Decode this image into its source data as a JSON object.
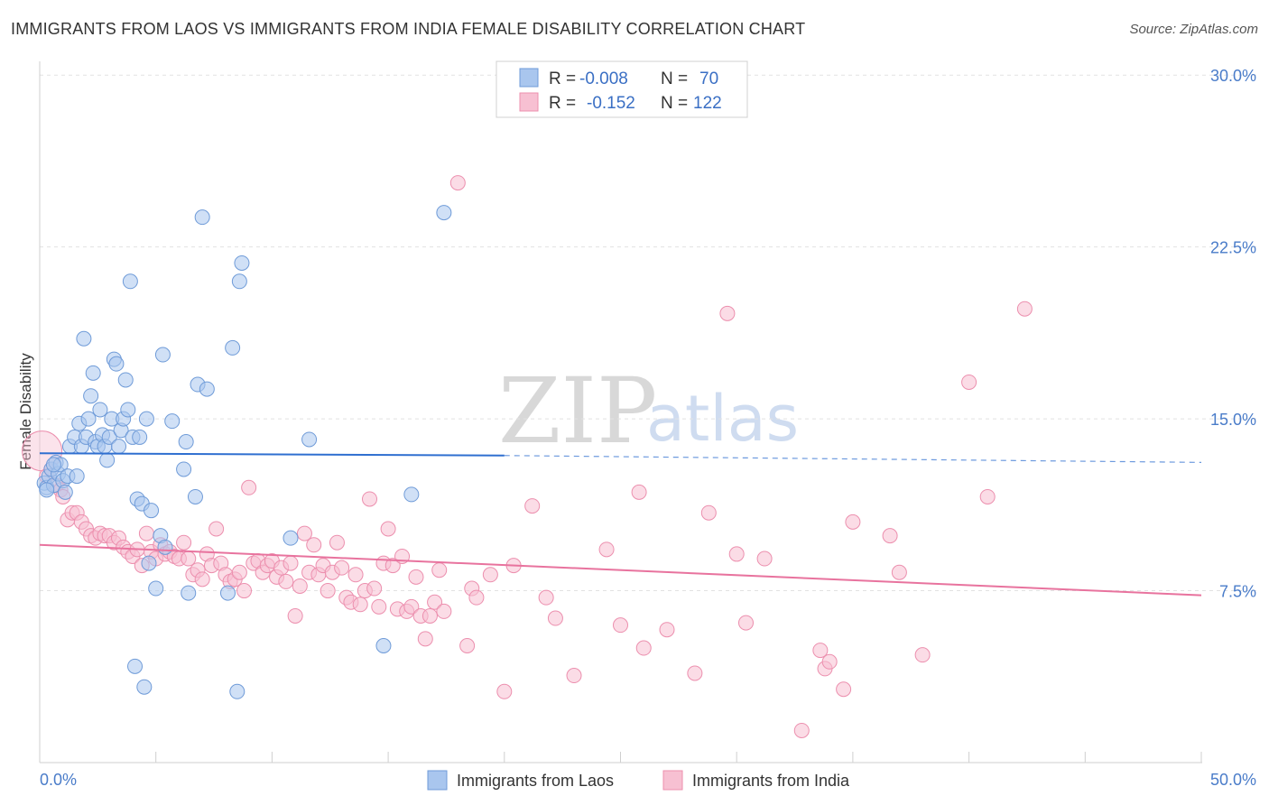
{
  "chart_data": {
    "type": "scatter",
    "title": "IMMIGRANTS FROM LAOS VS IMMIGRANTS FROM INDIA FEMALE DISABILITY CORRELATION CHART",
    "source": "Source: ZipAtlas.com",
    "watermark": {
      "part1": "ZIP",
      "part2": "atlas"
    },
    "xlabel": "",
    "ylabel": "Female Disability",
    "xlim": [
      0,
      50
    ],
    "ylim": [
      0,
      30.6
    ],
    "x_tick_labels": {
      "left": "0.0%",
      "right": "50.0%"
    },
    "y_ticks": [
      {
        "value": 7.5,
        "label": "7.5%"
      },
      {
        "value": 15.0,
        "label": "15.0%"
      },
      {
        "value": 22.5,
        "label": "22.5%"
      },
      {
        "value": 30.0,
        "label": "30.0%"
      }
    ],
    "legend_stats": [
      {
        "r_label": "R =",
        "r_value": "-0.008",
        "n_label": "N =",
        "n_value": "70"
      },
      {
        "r_label": "R =",
        "r_value": "-0.152",
        "n_label": "N =",
        "n_value": "122"
      }
    ],
    "series": [
      {
        "name": "Immigrants from Laos",
        "color": "#a9c6ee",
        "stroke": "#6f9bd8",
        "line_color": "#2f6fd0",
        "trend": {
          "x_start": 0,
          "y_start": 13.5,
          "x_solid_end": 20,
          "y_solid_end": 13.4,
          "x_end": 50,
          "y_end": 13.1
        },
        "points": [
          [
            0.2,
            12.2
          ],
          [
            0.3,
            12.0
          ],
          [
            0.4,
            12.5
          ],
          [
            0.5,
            12.8
          ],
          [
            0.6,
            12.1
          ],
          [
            0.7,
            13.1
          ],
          [
            0.8,
            12.6
          ],
          [
            0.9,
            13.0
          ],
          [
            1.0,
            12.3
          ],
          [
            1.1,
            11.8
          ],
          [
            1.2,
            12.5
          ],
          [
            1.3,
            13.8
          ],
          [
            1.5,
            14.2
          ],
          [
            1.6,
            12.5
          ],
          [
            1.7,
            14.8
          ],
          [
            1.8,
            13.8
          ],
          [
            1.9,
            18.5
          ],
          [
            2.0,
            14.2
          ],
          [
            2.1,
            15.0
          ],
          [
            2.2,
            16.0
          ],
          [
            2.3,
            17.0
          ],
          [
            2.4,
            14.0
          ],
          [
            2.5,
            13.8
          ],
          [
            2.6,
            15.4
          ],
          [
            2.7,
            14.3
          ],
          [
            2.8,
            13.8
          ],
          [
            2.9,
            13.2
          ],
          [
            3.0,
            14.2
          ],
          [
            3.1,
            15.0
          ],
          [
            3.2,
            17.6
          ],
          [
            3.3,
            17.4
          ],
          [
            3.4,
            13.8
          ],
          [
            3.5,
            14.5
          ],
          [
            3.6,
            15.0
          ],
          [
            3.7,
            16.7
          ],
          [
            3.8,
            15.4
          ],
          [
            3.9,
            21.0
          ],
          [
            4.0,
            14.2
          ],
          [
            4.1,
            4.2
          ],
          [
            4.2,
            11.5
          ],
          [
            4.3,
            14.2
          ],
          [
            4.4,
            11.3
          ],
          [
            4.5,
            3.3
          ],
          [
            4.6,
            15.0
          ],
          [
            4.7,
            8.7
          ],
          [
            4.8,
            11.0
          ],
          [
            5.0,
            7.6
          ],
          [
            5.2,
            9.9
          ],
          [
            5.3,
            17.8
          ],
          [
            5.4,
            9.4
          ],
          [
            5.7,
            14.9
          ],
          [
            6.2,
            12.8
          ],
          [
            6.3,
            14.0
          ],
          [
            6.4,
            7.4
          ],
          [
            6.7,
            11.6
          ],
          [
            6.8,
            16.5
          ],
          [
            7.0,
            23.8
          ],
          [
            7.2,
            16.3
          ],
          [
            8.1,
            7.4
          ],
          [
            8.3,
            18.1
          ],
          [
            8.5,
            3.1
          ],
          [
            8.6,
            21.0
          ],
          [
            8.7,
            21.8
          ],
          [
            10.8,
            9.8
          ],
          [
            11.6,
            14.1
          ],
          [
            14.8,
            5.1
          ],
          [
            16.0,
            11.7
          ],
          [
            17.4,
            24.0
          ],
          [
            0.3,
            11.9
          ],
          [
            0.6,
            13.0
          ]
        ]
      },
      {
        "name": "Immigrants from India",
        "color": "#f7c0d2",
        "stroke": "#ec8fae",
        "line_color": "#e8739e",
        "trend": {
          "x_start": 0,
          "y_start": 9.5,
          "x_end": 50,
          "y_end": 7.3
        },
        "points": [
          [
            0.1,
            13.6
          ],
          [
            0.3,
            12.5
          ],
          [
            0.5,
            12.8
          ],
          [
            0.7,
            12.1
          ],
          [
            0.9,
            11.9
          ],
          [
            1.0,
            11.6
          ],
          [
            1.2,
            10.6
          ],
          [
            1.4,
            10.9
          ],
          [
            1.6,
            10.9
          ],
          [
            1.8,
            10.5
          ],
          [
            2.0,
            10.2
          ],
          [
            2.2,
            9.9
          ],
          [
            2.4,
            9.8
          ],
          [
            2.6,
            10.0
          ],
          [
            2.8,
            9.9
          ],
          [
            3.0,
            9.9
          ],
          [
            3.2,
            9.6
          ],
          [
            3.4,
            9.8
          ],
          [
            3.6,
            9.4
          ],
          [
            3.8,
            9.2
          ],
          [
            4.0,
            9.0
          ],
          [
            4.2,
            9.3
          ],
          [
            4.4,
            8.6
          ],
          [
            4.6,
            10.0
          ],
          [
            4.8,
            9.2
          ],
          [
            5.0,
            8.9
          ],
          [
            5.2,
            9.5
          ],
          [
            5.4,
            9.1
          ],
          [
            5.6,
            9.2
          ],
          [
            5.8,
            9.0
          ],
          [
            6.0,
            8.9
          ],
          [
            6.2,
            9.6
          ],
          [
            6.4,
            8.9
          ],
          [
            6.6,
            8.2
          ],
          [
            6.8,
            8.4
          ],
          [
            7.0,
            8.0
          ],
          [
            7.2,
            9.1
          ],
          [
            7.4,
            8.6
          ],
          [
            7.6,
            10.2
          ],
          [
            7.8,
            8.7
          ],
          [
            8.0,
            8.2
          ],
          [
            8.2,
            7.9
          ],
          [
            8.4,
            8.0
          ],
          [
            8.6,
            8.3
          ],
          [
            8.8,
            7.5
          ],
          [
            9.0,
            12.0
          ],
          [
            9.2,
            8.7
          ],
          [
            9.4,
            8.8
          ],
          [
            9.6,
            8.3
          ],
          [
            9.8,
            8.6
          ],
          [
            10.0,
            8.8
          ],
          [
            10.2,
            8.1
          ],
          [
            10.4,
            8.5
          ],
          [
            10.6,
            7.9
          ],
          [
            10.8,
            8.7
          ],
          [
            11.0,
            6.4
          ],
          [
            11.2,
            7.7
          ],
          [
            11.4,
            10.0
          ],
          [
            11.6,
            8.3
          ],
          [
            11.8,
            9.5
          ],
          [
            12.0,
            8.2
          ],
          [
            12.2,
            8.6
          ],
          [
            12.4,
            7.5
          ],
          [
            12.6,
            8.3
          ],
          [
            12.8,
            9.6
          ],
          [
            13.0,
            8.5
          ],
          [
            13.2,
            7.2
          ],
          [
            13.4,
            7.0
          ],
          [
            13.6,
            8.2
          ],
          [
            13.8,
            6.9
          ],
          [
            14.0,
            7.5
          ],
          [
            14.2,
            11.5
          ],
          [
            14.4,
            7.6
          ],
          [
            14.6,
            6.8
          ],
          [
            14.8,
            8.7
          ],
          [
            15.0,
            10.2
          ],
          [
            15.2,
            8.6
          ],
          [
            15.4,
            6.7
          ],
          [
            15.6,
            9.0
          ],
          [
            15.8,
            6.6
          ],
          [
            16.0,
            6.8
          ],
          [
            16.2,
            8.1
          ],
          [
            16.4,
            6.4
          ],
          [
            16.6,
            5.4
          ],
          [
            16.8,
            6.4
          ],
          [
            17.0,
            7.0
          ],
          [
            17.2,
            8.4
          ],
          [
            17.4,
            6.6
          ],
          [
            18.0,
            25.3
          ],
          [
            18.4,
            5.1
          ],
          [
            18.6,
            7.6
          ],
          [
            18.8,
            7.2
          ],
          [
            19.4,
            8.2
          ],
          [
            20.0,
            3.1
          ],
          [
            20.4,
            8.6
          ],
          [
            21.2,
            11.2
          ],
          [
            21.8,
            7.2
          ],
          [
            22.2,
            6.3
          ],
          [
            23.0,
            3.8
          ],
          [
            24.4,
            9.3
          ],
          [
            25.0,
            6.0
          ],
          [
            26.0,
            5.0
          ],
          [
            27.0,
            5.8
          ],
          [
            28.2,
            3.9
          ],
          [
            28.8,
            10.9
          ],
          [
            29.6,
            19.6
          ],
          [
            30.0,
            9.1
          ],
          [
            30.4,
            6.1
          ],
          [
            31.2,
            8.9
          ],
          [
            32.8,
            1.4
          ],
          [
            33.6,
            4.9
          ],
          [
            33.8,
            4.1
          ],
          [
            34.0,
            4.4
          ],
          [
            34.6,
            3.2
          ],
          [
            35.0,
            10.5
          ],
          [
            36.6,
            9.9
          ],
          [
            37.0,
            8.3
          ],
          [
            38.0,
            4.7
          ],
          [
            40.0,
            16.6
          ],
          [
            42.4,
            19.8
          ],
          [
            40.8,
            11.6
          ],
          [
            25.8,
            11.8
          ]
        ]
      }
    ]
  }
}
